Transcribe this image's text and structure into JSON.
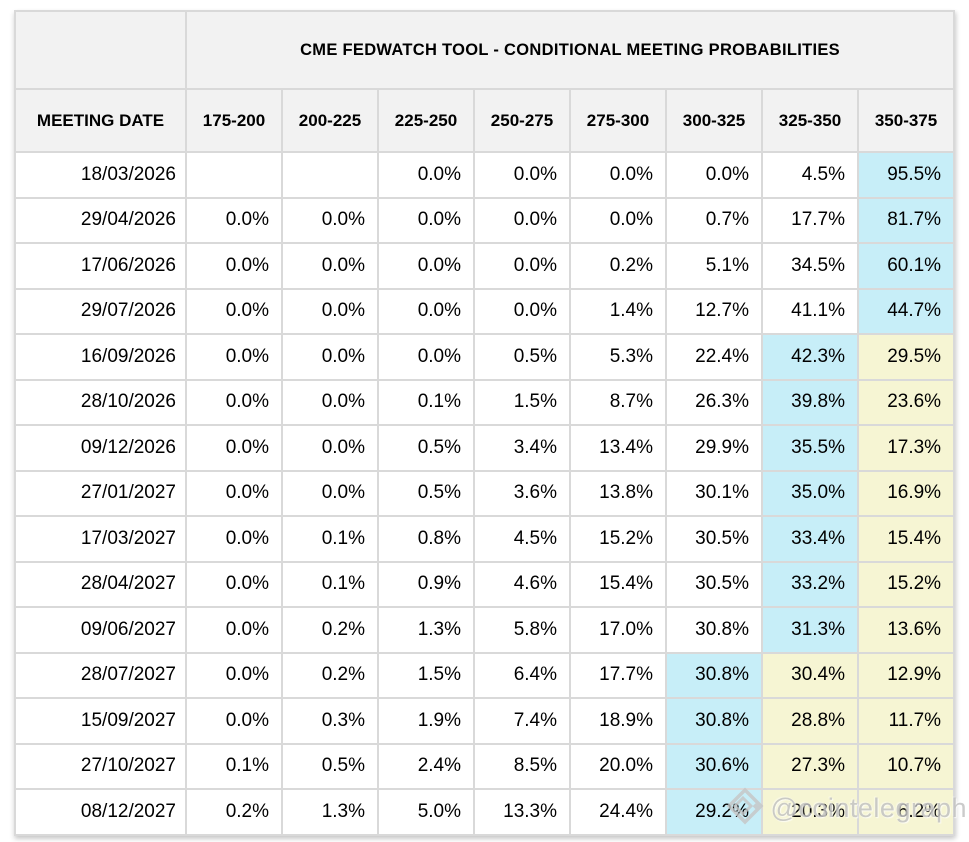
{
  "page": {
    "background": "#ffffff"
  },
  "colors": {
    "header_bg": "#f2f2f2",
    "cell_bg": "#ffffff",
    "highlight_max": "#c7eef8",
    "highlight_after": "#f6f5d3",
    "border": "#d9d9d9",
    "outer_border": "#c4c4c4",
    "text": "#000000",
    "watermark": "#c3c3c3"
  },
  "watermark": {
    "icon": "cointelegraph-diamond-icon",
    "handle": "@cointelegraph"
  },
  "chart_data": {
    "type": "table",
    "title": "CME FEDWATCH TOOL - CONDITIONAL MEETING PROBABILITIES",
    "row_header": "MEETING DATE",
    "columns": [
      "175-200",
      "200-225",
      "225-250",
      "250-275",
      "275-300",
      "300-325",
      "325-350",
      "350-375"
    ],
    "highlight_legend": {
      "max": "highest probability in row (light cyan)",
      "after": "cells right of the highest probability (light yellow)"
    },
    "rows": [
      {
        "date": "18/03/2026",
        "values": [
          "",
          "",
          "0.0%",
          "0.0%",
          "0.0%",
          "0.0%",
          "4.5%",
          "95.5%"
        ],
        "highlights": [
          "",
          "",
          "",
          "",
          "",
          "",
          "",
          "max"
        ]
      },
      {
        "date": "29/04/2026",
        "values": [
          "0.0%",
          "0.0%",
          "0.0%",
          "0.0%",
          "0.0%",
          "0.7%",
          "17.7%",
          "81.7%"
        ],
        "highlights": [
          "",
          "",
          "",
          "",
          "",
          "",
          "",
          "max"
        ]
      },
      {
        "date": "17/06/2026",
        "values": [
          "0.0%",
          "0.0%",
          "0.0%",
          "0.0%",
          "0.2%",
          "5.1%",
          "34.5%",
          "60.1%"
        ],
        "highlights": [
          "",
          "",
          "",
          "",
          "",
          "",
          "",
          "max"
        ]
      },
      {
        "date": "29/07/2026",
        "values": [
          "0.0%",
          "0.0%",
          "0.0%",
          "0.0%",
          "1.4%",
          "12.7%",
          "41.1%",
          "44.7%"
        ],
        "highlights": [
          "",
          "",
          "",
          "",
          "",
          "",
          "",
          "max"
        ]
      },
      {
        "date": "16/09/2026",
        "values": [
          "0.0%",
          "0.0%",
          "0.0%",
          "0.5%",
          "5.3%",
          "22.4%",
          "42.3%",
          "29.5%"
        ],
        "highlights": [
          "",
          "",
          "",
          "",
          "",
          "",
          "max",
          "after"
        ]
      },
      {
        "date": "28/10/2026",
        "values": [
          "0.0%",
          "0.0%",
          "0.1%",
          "1.5%",
          "8.7%",
          "26.3%",
          "39.8%",
          "23.6%"
        ],
        "highlights": [
          "",
          "",
          "",
          "",
          "",
          "",
          "max",
          "after"
        ]
      },
      {
        "date": "09/12/2026",
        "values": [
          "0.0%",
          "0.0%",
          "0.5%",
          "3.4%",
          "13.4%",
          "29.9%",
          "35.5%",
          "17.3%"
        ],
        "highlights": [
          "",
          "",
          "",
          "",
          "",
          "",
          "max",
          "after"
        ]
      },
      {
        "date": "27/01/2027",
        "values": [
          "0.0%",
          "0.0%",
          "0.5%",
          "3.6%",
          "13.8%",
          "30.1%",
          "35.0%",
          "16.9%"
        ],
        "highlights": [
          "",
          "",
          "",
          "",
          "",
          "",
          "max",
          "after"
        ]
      },
      {
        "date": "17/03/2027",
        "values": [
          "0.0%",
          "0.1%",
          "0.8%",
          "4.5%",
          "15.2%",
          "30.5%",
          "33.4%",
          "15.4%"
        ],
        "highlights": [
          "",
          "",
          "",
          "",
          "",
          "",
          "max",
          "after"
        ]
      },
      {
        "date": "28/04/2027",
        "values": [
          "0.0%",
          "0.1%",
          "0.9%",
          "4.6%",
          "15.4%",
          "30.5%",
          "33.2%",
          "15.2%"
        ],
        "highlights": [
          "",
          "",
          "",
          "",
          "",
          "",
          "max",
          "after"
        ]
      },
      {
        "date": "09/06/2027",
        "values": [
          "0.0%",
          "0.2%",
          "1.3%",
          "5.8%",
          "17.0%",
          "30.8%",
          "31.3%",
          "13.6%"
        ],
        "highlights": [
          "",
          "",
          "",
          "",
          "",
          "",
          "max",
          "after"
        ]
      },
      {
        "date": "28/07/2027",
        "values": [
          "0.0%",
          "0.2%",
          "1.5%",
          "6.4%",
          "17.7%",
          "30.8%",
          "30.4%",
          "12.9%"
        ],
        "highlights": [
          "",
          "",
          "",
          "",
          "",
          "max",
          "after",
          "after"
        ]
      },
      {
        "date": "15/09/2027",
        "values": [
          "0.0%",
          "0.3%",
          "1.9%",
          "7.4%",
          "18.9%",
          "30.8%",
          "28.8%",
          "11.7%"
        ],
        "highlights": [
          "",
          "",
          "",
          "",
          "",
          "max",
          "after",
          "after"
        ]
      },
      {
        "date": "27/10/2027",
        "values": [
          "0.1%",
          "0.5%",
          "2.4%",
          "8.5%",
          "20.0%",
          "30.6%",
          "27.3%",
          "10.7%"
        ],
        "highlights": [
          "",
          "",
          "",
          "",
          "",
          "max",
          "after",
          "after"
        ]
      },
      {
        "date": "08/12/2027",
        "values": [
          "0.2%",
          "1.3%",
          "5.0%",
          "13.3%",
          "24.4%",
          "29.2%",
          "20.3%",
          "6.2%"
        ],
        "highlights": [
          "",
          "",
          "",
          "",
          "",
          "max",
          "after",
          "after"
        ]
      }
    ]
  }
}
